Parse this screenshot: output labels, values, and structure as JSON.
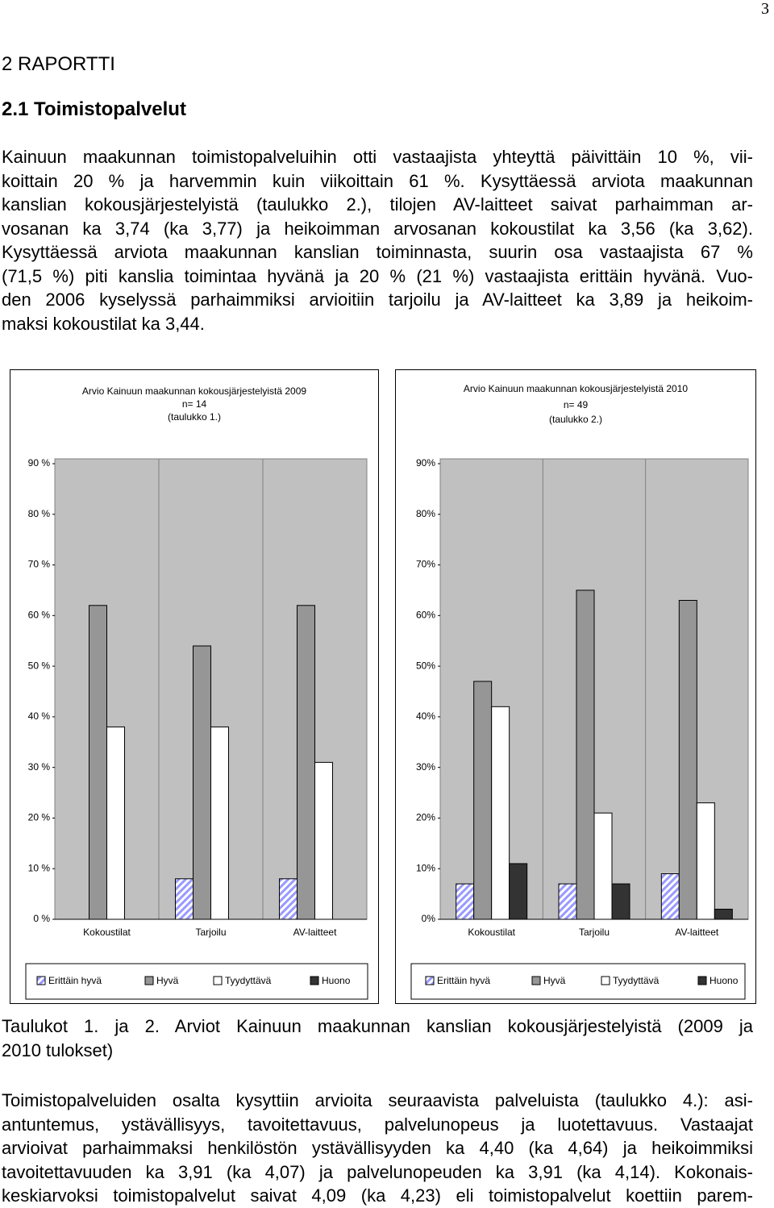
{
  "page_number": "3",
  "heading": "2 RAPORTTI",
  "subheading": "2.1 Toimistopalvelut",
  "paragraph_1": [
    "Kainuun maakunnan toimistopalveluihin otti vastaajista yhteyttä päivittäin 10 %, vii-",
    "koittain 20 % ja harvemmin kuin viikoittain 61 %. Kysyttäessä arviota maakunnan",
    "kanslian kokousjärjestelyistä (taulukko 2.), tilojen AV-laitteet saivat parhaimman ar-",
    "vosanan ka 3,74 (ka 3,77) ja heikoimman arvosanan kokoustilat ka 3,56 (ka 3,62).",
    "Kysyttäessä arviota maakunnan kanslian toiminnasta, suurin osa vastaajista 67 %",
    "(71,5 %) piti kanslia toimintaa hyvänä ja 20 % (21 %) vastaajista erittäin hyvänä. Vuo-",
    "den 2006 kyselyssä parhaimmiksi arvioitiin tarjoilu ja AV-laitteet ka 3,89 ja heikoim-",
    "maksi kokoustilat ka 3,44."
  ],
  "chart_data": [
    {
      "type": "bar",
      "title": "Arvio Kainuun maakunnan kokousjärjestelyistä 2009",
      "subtitle": [
        "n= 14",
        "(taulukko 1.)"
      ],
      "categories": [
        "Kokoustilat",
        "Tarjoilu",
        "AV-laitteet"
      ],
      "series": [
        {
          "name": "Erittäin hyvä",
          "color": "#9999ff",
          "hatch": true,
          "values": [
            0,
            8,
            8
          ]
        },
        {
          "name": "Hyvä",
          "color": "#969696",
          "values": [
            62,
            54,
            62
          ]
        },
        {
          "name": "Tyydyttävä",
          "color": "#ffffff",
          "values": [
            38,
            38,
            31
          ]
        },
        {
          "name": "Huono",
          "color": "#333333",
          "values": [
            0,
            0,
            0
          ]
        }
      ],
      "ylim": [
        0,
        90
      ],
      "yticks": [
        {
          "value": 0,
          "label": "0 %"
        },
        {
          "value": 10,
          "label": "10 %"
        },
        {
          "value": 20,
          "label": "20 %"
        },
        {
          "value": 30,
          "label": "30 %"
        },
        {
          "value": 40,
          "label": "40 %"
        },
        {
          "value": 50,
          "label": "50 %"
        },
        {
          "value": 60,
          "label": "60 %"
        },
        {
          "value": 70,
          "label": "70 %"
        },
        {
          "value": 80,
          "label": "80 %"
        },
        {
          "value": 90,
          "label": "90 %"
        }
      ],
      "grid": false,
      "legend": "bottom"
    },
    {
      "type": "bar",
      "title": "Arvio Kainuun maakunnan kokousjärjestelyistä 2010",
      "subtitle": [
        "n= 49",
        "(taulukko 2.)"
      ],
      "categories": [
        "Kokoustilat",
        "Tarjoilu",
        "AV-laitteet"
      ],
      "series": [
        {
          "name": "Erittäin hyvä",
          "color": "#9999ff",
          "hatch": true,
          "values": [
            7,
            7,
            9
          ]
        },
        {
          "name": "Hyvä",
          "color": "#969696",
          "values": [
            47,
            65,
            63
          ]
        },
        {
          "name": "Tyydyttävä",
          "color": "#ffffff",
          "values": [
            42,
            21,
            23
          ]
        },
        {
          "name": "Huono",
          "color": "#333333",
          "values": [
            11,
            7,
            2
          ]
        }
      ],
      "ylim": [
        0,
        90
      ],
      "yticks": [
        {
          "value": 0,
          "label": "0%"
        },
        {
          "value": 10,
          "label": "10%"
        },
        {
          "value": 20,
          "label": "20%"
        },
        {
          "value": 30,
          "label": "30%"
        },
        {
          "value": 40,
          "label": "40%"
        },
        {
          "value": 50,
          "label": "50%"
        },
        {
          "value": 60,
          "label": "60%"
        },
        {
          "value": 70,
          "label": "70%"
        },
        {
          "value": 80,
          "label": "80%"
        },
        {
          "value": 90,
          "label": "90%"
        }
      ],
      "grid": false,
      "legend": "bottom"
    }
  ],
  "caption": [
    "Taulukot 1. ja 2. Arviot Kainuun maakunnan kanslian kokousjärjestelyistä (2009 ja",
    "2010 tulokset)"
  ],
  "paragraph_2": [
    "Toimistopalveluiden osalta kysyttiin arvioita seuraavista palveluista (taulukko 4.): asi-",
    "antuntemus, ystävällisyys, tavoitettavuus, palvelunopeus ja luotettavuus. Vastaajat",
    "arvioivat parhaimmaksi henkilöstön ystävällisyyden ka 4,40 (ka 4,64) ja heikoimmiksi",
    "tavoitettavuuden ka 3,91 (ka 4,07) ja palvelunopeuden ka 3,91 (ka 4,14). Kokonais-",
    "keskiarvoksi toimistopalvelut saivat 4,09 (ka 4,23) eli toimistopalvelut koettiin parem-"
  ]
}
